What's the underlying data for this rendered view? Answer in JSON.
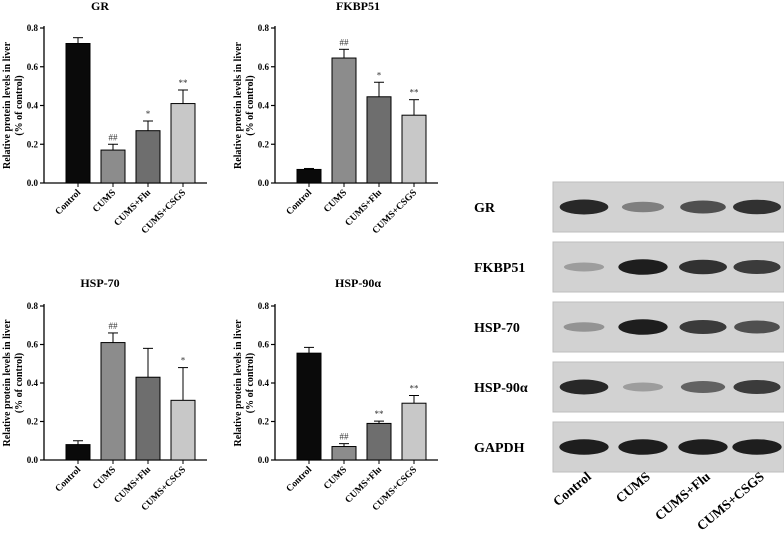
{
  "chart_data": [
    {
      "type": "bar",
      "title": "GR",
      "ylabel": "Relative protein levels in liver",
      "ylabel2": "(% of control)",
      "categories": [
        "Control",
        "CUMS",
        "CUMS+Flu",
        "CUMS+CSGS"
      ],
      "values": [
        0.72,
        0.17,
        0.27,
        0.41
      ],
      "errors": [
        0.03,
        0.03,
        0.05,
        0.07
      ],
      "significance": [
        "",
        "##",
        "*",
        "**"
      ],
      "ylim": [
        0,
        0.8
      ],
      "yticks": [
        "0.0",
        "0.2",
        "0.4",
        "0.6",
        "0.8"
      ]
    },
    {
      "type": "bar",
      "title": "FKBP51",
      "ylabel": "Relative protein levels in liver",
      "ylabel2": "(% of control)",
      "categories": [
        "Control",
        "CUMS",
        "CUMS+Flu",
        "CUMS+CSGS"
      ],
      "values": [
        0.07,
        0.645,
        0.445,
        0.35
      ],
      "errors": [
        0.005,
        0.045,
        0.075,
        0.08
      ],
      "significance": [
        "",
        "##",
        "*",
        "**"
      ],
      "ylim": [
        0,
        0.8
      ],
      "yticks": [
        "0.0",
        "0.2",
        "0.4",
        "0.6",
        "0.8"
      ]
    },
    {
      "type": "bar",
      "title": "HSP-70",
      "ylabel": "Relative protein levels in liver",
      "ylabel2": "(% of control)",
      "categories": [
        "Control",
        "CUMS",
        "CUMS+Flu",
        "CUMS+CSGS"
      ],
      "values": [
        0.08,
        0.61,
        0.43,
        0.31
      ],
      "errors": [
        0.02,
        0.05,
        0.15,
        0.17
      ],
      "significance": [
        "",
        "##",
        "",
        "*"
      ],
      "ylim": [
        0,
        0.8
      ],
      "yticks": [
        "0.0",
        "0.2",
        "0.4",
        "0.6",
        "0.8"
      ]
    },
    {
      "type": "bar",
      "title": "HSP-90α",
      "ylabel": "Relative protein levels in liver",
      "ylabel2": "(% of control)",
      "categories": [
        "Control",
        "CUMS",
        "CUMS+Flu",
        "CUMS+CSGS"
      ],
      "values": [
        0.555,
        0.07,
        0.19,
        0.295
      ],
      "errors": [
        0.03,
        0.015,
        0.012,
        0.04
      ],
      "significance": [
        "",
        "##",
        "**",
        "**"
      ],
      "ylim": [
        0,
        0.8
      ],
      "yticks": [
        "0.0",
        "0.2",
        "0.4",
        "0.6",
        "0.8"
      ]
    }
  ],
  "colors": {
    "bars": [
      "#0a0a0a",
      "#8c8c8c",
      "#6e6e6e",
      "#c8c8c8"
    ]
  },
  "blot": {
    "rows": [
      {
        "label": "GR",
        "intensities": [
          0.9,
          0.45,
          0.7,
          0.85
        ]
      },
      {
        "label": "FKBP51",
        "intensities": [
          0.3,
          0.95,
          0.85,
          0.8
        ]
      },
      {
        "label": "HSP-70",
        "intensities": [
          0.35,
          0.95,
          0.8,
          0.7
        ]
      },
      {
        "label": "HSP-90α",
        "intensities": [
          0.9,
          0.3,
          0.6,
          0.8
        ]
      },
      {
        "label": "GAPDH",
        "intensities": [
          0.95,
          0.95,
          0.95,
          0.95
        ]
      }
    ],
    "lanes": [
      "Control",
      "CUMS",
      "CUMS+Flu",
      "CUMS+CSGS"
    ]
  }
}
